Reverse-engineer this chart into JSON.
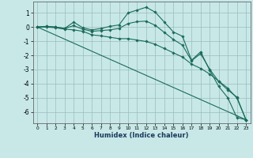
{
  "xlabel": "Humidex (Indice chaleur)",
  "bg_color": "#c8e8e8",
  "grid_color": "#9bbcbc",
  "line_color": "#1a6b5a",
  "xlim": [
    -0.5,
    23.5
  ],
  "ylim": [
    -6.8,
    1.8
  ],
  "yticks": [
    1,
    0,
    -1,
    -2,
    -3,
    -4,
    -5,
    -6
  ],
  "xticks": [
    0,
    1,
    2,
    3,
    4,
    5,
    6,
    7,
    8,
    9,
    10,
    11,
    12,
    13,
    14,
    15,
    16,
    17,
    18,
    19,
    20,
    21,
    22,
    23
  ],
  "lines": [
    {
      "x": [
        0,
        1,
        2,
        3,
        4,
        5,
        6,
        7,
        8,
        9,
        10,
        11,
        12,
        13,
        14,
        15,
        16,
        17,
        18,
        19,
        20,
        21,
        22,
        23
      ],
      "y": [
        0.0,
        0.05,
        0.0,
        -0.1,
        0.35,
        -0.05,
        -0.2,
        -0.1,
        0.05,
        0.15,
        1.0,
        1.2,
        1.4,
        1.05,
        0.35,
        -0.35,
        -0.65,
        -2.35,
        -1.75,
        -3.05,
        -4.2,
        -5.0,
        -6.4,
        -6.55
      ],
      "has_markers": true
    },
    {
      "x": [
        0,
        1,
        2,
        3,
        4,
        5,
        6,
        7,
        8,
        9,
        10,
        11,
        12,
        13,
        14,
        15,
        16,
        17,
        18,
        19,
        20,
        21,
        22,
        23
      ],
      "y": [
        0.0,
        0.05,
        0.0,
        -0.1,
        0.1,
        -0.15,
        -0.3,
        -0.25,
        -0.2,
        -0.1,
        0.25,
        0.38,
        0.42,
        0.12,
        -0.38,
        -0.88,
        -1.28,
        -2.38,
        -1.88,
        -2.98,
        -3.85,
        -4.45,
        -4.95,
        -6.55
      ],
      "has_markers": true
    },
    {
      "x": [
        0,
        1,
        2,
        3,
        4,
        5,
        6,
        7,
        8,
        9,
        10,
        11,
        12,
        13,
        14,
        15,
        16,
        17,
        18,
        19,
        20,
        21,
        22,
        23
      ],
      "y": [
        0.0,
        0.0,
        -0.05,
        -0.15,
        -0.2,
        -0.3,
        -0.55,
        -0.62,
        -0.72,
        -0.82,
        -0.82,
        -0.92,
        -1.02,
        -1.22,
        -1.52,
        -1.82,
        -2.12,
        -2.62,
        -2.92,
        -3.32,
        -3.82,
        -4.32,
        -5.02,
        -6.55
      ],
      "has_markers": true
    },
    {
      "x": [
        0,
        23
      ],
      "y": [
        0.0,
        -6.55
      ],
      "has_markers": false
    }
  ]
}
